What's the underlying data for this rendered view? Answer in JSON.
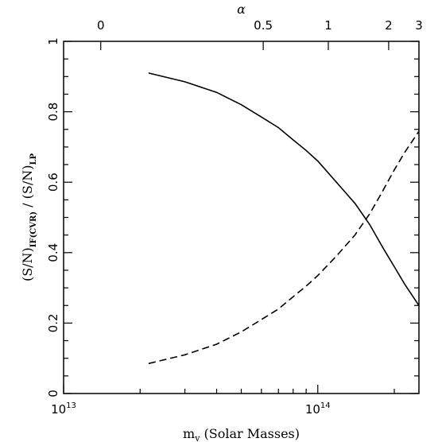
{
  "chart_data": {
    "type": "line",
    "title": "",
    "xlabel": {
      "main": "m",
      "sub": "v",
      "rest": " (Solar Masses)"
    },
    "ylabel": {
      "part1": "(S/N)",
      "sub1": "IF(CVR)",
      "part2": " / (S/N)",
      "sub2": "LP"
    },
    "top_axis_label": "α",
    "xscale": "log",
    "xlim": [
      10000000000000,
      250000000000000
    ],
    "ylim": [
      0,
      1
    ],
    "x_ticks": [
      {
        "value": 10000000000000,
        "base": "10",
        "exp": "13"
      },
      {
        "value": 100000000000000,
        "base": "10",
        "exp": "14"
      }
    ],
    "y_ticks": [
      {
        "value": 0,
        "label": "0"
      },
      {
        "value": 0.2,
        "label": "0.2"
      },
      {
        "value": 0.4,
        "label": "0.4"
      },
      {
        "value": 0.6,
        "label": "0.6"
      },
      {
        "value": 0.8,
        "label": "0.8"
      },
      {
        "value": 1,
        "label": "1"
      }
    ],
    "top_ticks": [
      {
        "label": "0",
        "x": 14000000000000
      },
      {
        "label": "0.5",
        "x": 61000000000000
      },
      {
        "label": "1",
        "x": 110000000000000
      },
      {
        "label": "2",
        "x": 190000000000000
      },
      {
        "label": "3",
        "x": 250000000000000
      }
    ],
    "series": [
      {
        "style": "solid",
        "x": [
          21600000000000,
          30000000000000,
          40000000000000,
          50000000000000,
          60000000000000,
          70000000000000,
          80000000000000,
          90000000000000,
          100000000000000,
          120000000000000,
          140000000000000,
          160000000000000,
          180000000000000,
          200000000000000,
          220000000000000,
          250000000000000
        ],
        "y": [
          0.91,
          0.885,
          0.855,
          0.82,
          0.785,
          0.755,
          0.72,
          0.69,
          0.66,
          0.595,
          0.54,
          0.48,
          0.415,
          0.36,
          0.31,
          0.25
        ]
      },
      {
        "style": "dashed",
        "x": [
          21600000000000,
          30000000000000,
          40000000000000,
          50000000000000,
          60000000000000,
          70000000000000,
          80000000000000,
          90000000000000,
          100000000000000,
          120000000000000,
          140000000000000,
          160000000000000,
          180000000000000,
          200000000000000,
          220000000000000,
          250000000000000
        ],
        "y": [
          0.085,
          0.11,
          0.14,
          0.175,
          0.21,
          0.24,
          0.275,
          0.305,
          0.335,
          0.395,
          0.45,
          0.51,
          0.575,
          0.635,
          0.685,
          0.745
        ]
      }
    ]
  }
}
